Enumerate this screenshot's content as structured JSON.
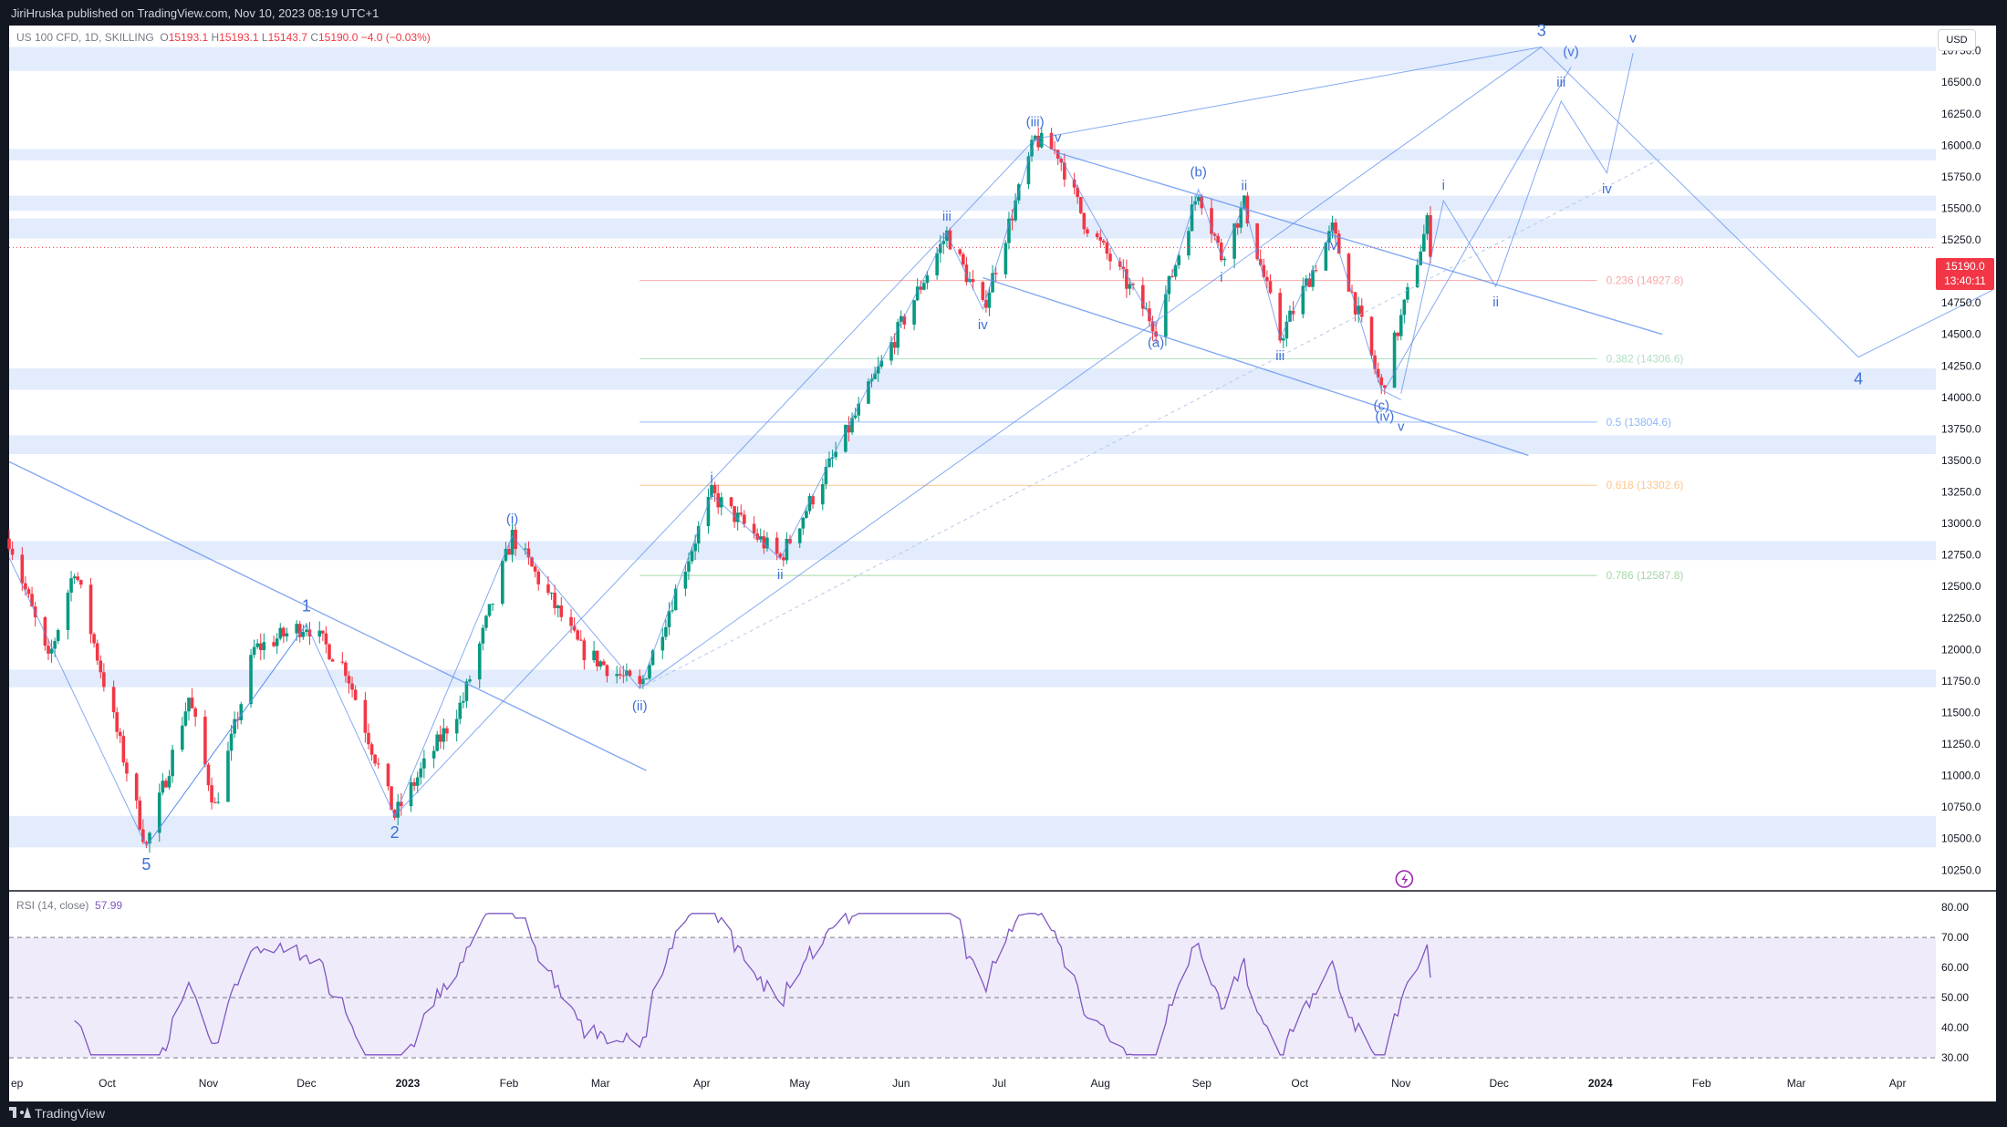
{
  "header": {
    "published": "JiriHruska published on TradingView.com, Nov 10, 2023 08:19 UTC+1"
  },
  "legend": {
    "symbol": "US 100 CFD, 1D, SKILLING",
    "o_label": "O",
    "o": "15193.1",
    "h_label": "H",
    "h": "15193.1",
    "l_label": "L",
    "l": "15143.7",
    "c_label": "C",
    "c": "15190.0",
    "change": "−4.0 (−0.03%)"
  },
  "currency_button": "USD",
  "last_price": {
    "price": "15190.0",
    "countdown": "13:40:11"
  },
  "rsi_legend": {
    "label": "RSI (14, close)",
    "value": "57.99"
  },
  "footer": {
    "brand": "TradingView"
  },
  "colors": {
    "up": "#089981",
    "down": "#f23645",
    "wave": "#5b8def",
    "band": "#e3ecfc",
    "rsi_line": "#7e57c2",
    "rsi_band": "#f0ebfa"
  },
  "chart_data": [
    {
      "type": "candlestick",
      "title": "",
      "y_axis_ticks": [
        10250,
        10500,
        10750,
        11000,
        11250,
        11500,
        11750,
        12000,
        12250,
        12500,
        12750,
        13000,
        13250,
        13500,
        13750,
        14000,
        14250,
        14500,
        14750,
        15000,
        15250,
        15500,
        15750,
        16000,
        16250,
        16500,
        16750
      ],
      "y_axis_labels": [
        "10250.0",
        "10500.0",
        "10750.0",
        "11000.0",
        "11250.0",
        "11500.0",
        "11750.0",
        "12000.0",
        "12250.0",
        "12500.0",
        "12750.0",
        "13000.0",
        "13250.0",
        "13500.0",
        "13750.0",
        "14000.0",
        "14250.0",
        "14500.0",
        "14750.0",
        "15000.0",
        "15250.0",
        "15500.0",
        "15750.0",
        "16000.0",
        "16250.0",
        "16500.0",
        "16750.0"
      ],
      "ylim": [
        10100,
        16950
      ],
      "x_axis_labels": [
        "ep",
        "Oct",
        "Nov",
        "Dec",
        "2023",
        "Feb",
        "Mar",
        "Apr",
        "May",
        "Jun",
        "Jul",
        "Aug",
        "Sep",
        "Oct",
        "Nov",
        "Dec",
        "2024",
        "Feb",
        "Mar",
        "Apr"
      ],
      "wave_pivots": [
        {
          "label": "5",
          "date": "2022-10-13",
          "price": 10440
        },
        {
          "label": "1",
          "date": "2022-12-01",
          "price": 12200
        },
        {
          "label": "2",
          "date": "2022-12-28",
          "price": 10680
        },
        {
          "label": "(i)",
          "date": "2023-02-02",
          "price": 12900
        },
        {
          "label": "(ii)",
          "date": "2023-03-13",
          "price": 11690
        },
        {
          "label": "i",
          "date": "2023-04-04",
          "price": 13230
        },
        {
          "label": "ii",
          "date": "2023-04-25",
          "price": 12720
        },
        {
          "label": "iii",
          "date": "2023-06-15",
          "price": 15300
        },
        {
          "label": "iv",
          "date": "2023-06-26",
          "price": 14700
        },
        {
          "label": "(iii)",
          "date": "2023-07-12",
          "price": 16050
        },
        {
          "label": "v",
          "date": "2023-07-19",
          "price": 15940
        },
        {
          "label": "(a)",
          "date": "2023-08-18",
          "price": 14560
        },
        {
          "label": "(b)",
          "date": "2023-08-31",
          "price": 15650
        },
        {
          "label": "i",
          "date": "2023-09-07",
          "price": 15120
        },
        {
          "label": "ii",
          "date": "2023-09-14",
          "price": 15530
        },
        {
          "label": "iii",
          "date": "2023-09-25",
          "price": 14470
        },
        {
          "label": "iv",
          "date": "2023-10-11",
          "price": 15330
        },
        {
          "label": "(c)",
          "date": "2023-10-26",
          "price": 14060
        },
        {
          "label": "(iv)",
          "date": "2023-10-27",
          "price": 14060
        },
        {
          "label": "v",
          "date": "2023-11-01",
          "price": 13980
        }
      ],
      "projection": [
        {
          "label": "i",
          "date": "2023-11-14",
          "price": 15560
        },
        {
          "label": "ii",
          "date": "2023-11-30",
          "price": 14880
        },
        {
          "label": "iii",
          "date": "2023-12-20",
          "price": 16350
        },
        {
          "label": "iv",
          "date": "2024-01-03",
          "price": 15780
        },
        {
          "label": "v",
          "date": "2024-01-11",
          "price": 16730
        },
        {
          "label": "(v)",
          "date": "2023-12-23",
          "price": 16620
        },
        {
          "label": "3",
          "date": "2023-12-14",
          "price": 16780
        },
        {
          "label": "4",
          "date": "2024-03-20",
          "price": 14320
        }
      ],
      "fibonacci": [
        {
          "ratio": "0.236",
          "price": 14927.8,
          "label": "0.236 (14927.8)",
          "color": "#f7a9a9"
        },
        {
          "ratio": "0.382",
          "price": 14306.6,
          "label": "0.382 (14306.6)",
          "color": "#b2dfc4"
        },
        {
          "ratio": "0.5",
          "price": 13804.6,
          "label": "0.5 (13804.6)",
          "color": "#90b8f8"
        },
        {
          "ratio": "0.618",
          "price": 13302.6,
          "label": "0.618 (13302.6)",
          "color": "#ffc58a"
        },
        {
          "ratio": "0.786",
          "price": 12587.8,
          "label": "0.786 (12587.8)",
          "color": "#a5d6a7"
        }
      ],
      "support_resistance_zones": [
        [
          16590,
          16780
        ],
        [
          15880,
          15970
        ],
        [
          15480,
          15600
        ],
        [
          15260,
          15420
        ],
        [
          14060,
          14230
        ],
        [
          13550,
          13700
        ],
        [
          12710,
          12860
        ],
        [
          11700,
          11840
        ],
        [
          10430,
          10680
        ]
      ],
      "last_price": 15190.0
    },
    {
      "type": "line",
      "title": "",
      "series_label": "RSI (14, close)",
      "y_axis_ticks": [
        30,
        40,
        50,
        60,
        70,
        80
      ],
      "y_axis_labels": [
        "30.00",
        "40.00",
        "50.00",
        "60.00",
        "70.00",
        "80.00"
      ],
      "ylim": [
        27,
        84
      ],
      "band": [
        30,
        70
      ],
      "last_value": 57.99
    }
  ]
}
